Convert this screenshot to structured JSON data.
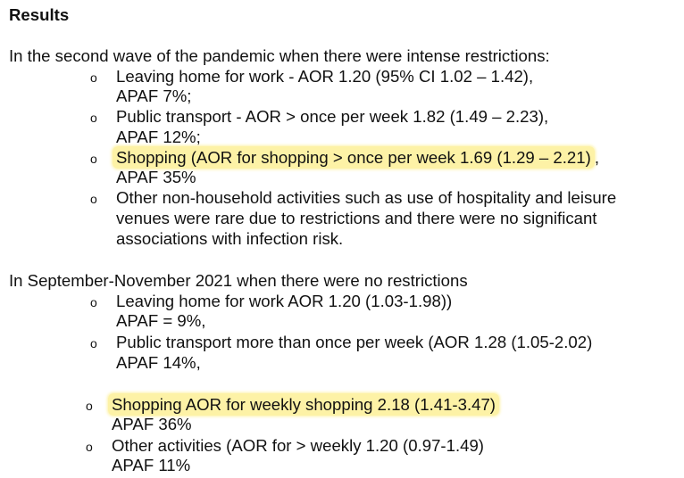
{
  "heading": "Results",
  "section1": {
    "intro": "In the second wave of the pandemic when there were intense restrictions:",
    "items": [
      {
        "bullet": "o",
        "line1": "Leaving home for work  - AOR 1.20 (95% CI 1.02 – 1.42),",
        "line2": "APAF 7%;"
      },
      {
        "bullet": "o",
        "line1": "Public transport - AOR > once per week 1.82 (1.49 – 2.23),",
        "line2": "APAF 12%;"
      },
      {
        "bullet": "o",
        "line1_highlight": "Shopping (AOR for shopping > once per week 1.69 (1.29 – 2.21)",
        "line1_rest": ",",
        "line2": "APAF 35%"
      },
      {
        "bullet": "o",
        "line1": "Other non-household activities such as use of hospitality and leisure",
        "line2": "venues were rare due to restrictions and there were no significant",
        "line3": "associations with infection risk."
      }
    ]
  },
  "section2": {
    "intro": "In September-November 2021 when there were no restrictions",
    "items": [
      {
        "bullet": "o",
        "line1": "Leaving home for work AOR 1.20 (1.03-1.98))",
        "line2": "APAF = 9%,"
      },
      {
        "bullet": "o",
        "line1": "Public transport more than once per week (AOR 1.28 (1.05-2.02)",
        "line2": "APAF 14%,"
      },
      {
        "bullet": "o",
        "line1_highlight": "Shopping AOR for weekly shopping 2.18 (1.41-3.47)",
        "line2": "APAF 36%"
      },
      {
        "bullet": "o",
        "line1": "Other activities (AOR for > weekly 1.20 (0.97-1.49)",
        "line2": "APAF 11%"
      }
    ]
  },
  "colors": {
    "highlight": "#fdf2a6",
    "text": "#111111"
  }
}
